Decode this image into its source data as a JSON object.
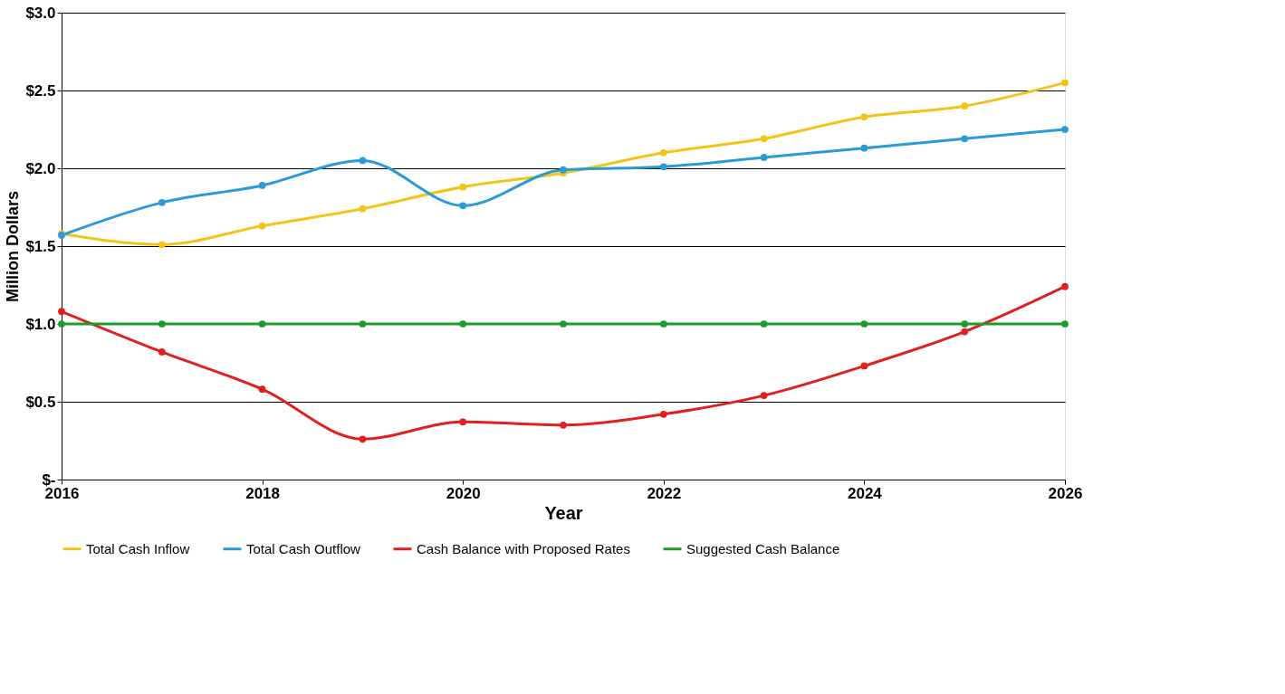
{
  "chart_data": {
    "type": "line",
    "xlabel": "Year",
    "ylabel": "Million Dollars",
    "x": [
      2016,
      2017,
      2018,
      2019,
      2020,
      2021,
      2022,
      2023,
      2024,
      2025,
      2026
    ],
    "series": [
      {
        "name": "Total Cash Inflow",
        "color": "#f0c419",
        "values": [
          1.58,
          1.51,
          1.63,
          1.74,
          1.88,
          1.97,
          2.1,
          2.19,
          2.33,
          2.4,
          2.55
        ]
      },
      {
        "name": "Total Cash Outflow",
        "color": "#2b9ad6",
        "values": [
          1.57,
          1.78,
          1.89,
          2.05,
          1.76,
          1.99,
          2.01,
          2.07,
          2.13,
          2.19,
          2.25
        ]
      },
      {
        "name": "Cash Balance with Proposed Rates",
        "color": "#e02020",
        "values": [
          1.08,
          0.82,
          0.58,
          0.26,
          0.37,
          0.35,
          0.42,
          0.54,
          0.73,
          0.95,
          1.24
        ]
      },
      {
        "name": "Suggested Cash Balance",
        "color": "#1f9a2e",
        "values": [
          1.0,
          1.0,
          1.0,
          1.0,
          1.0,
          1.0,
          1.0,
          1.0,
          1.0,
          1.0,
          1.0
        ]
      }
    ],
    "xlim": [
      2016,
      2026
    ],
    "xticks": [
      2016,
      2018,
      2020,
      2022,
      2024,
      2026
    ],
    "ylim": [
      0,
      3.0
    ],
    "yticks": [
      {
        "value": 0,
        "label": "$-"
      },
      {
        "value": 0.5,
        "label": "$0.5"
      },
      {
        "value": 1.0,
        "label": "$1.0"
      },
      {
        "value": 1.5,
        "label": "$1.5"
      },
      {
        "value": 2.0,
        "label": "$2.0"
      },
      {
        "value": 2.5,
        "label": "$2.5"
      },
      {
        "value": 3.0,
        "label": "$3.0"
      }
    ],
    "grid": "y",
    "legend": "bottom",
    "marker": "circle",
    "line_style": "solid"
  }
}
